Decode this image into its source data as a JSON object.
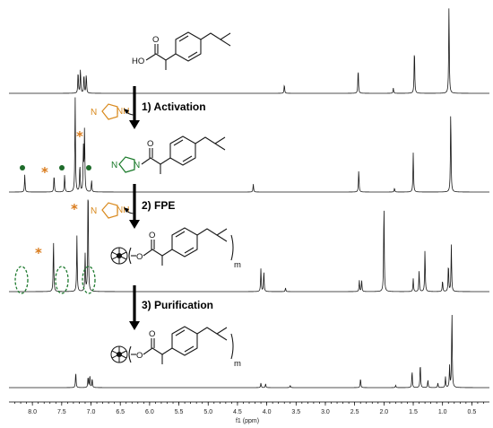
{
  "chart_data": {
    "type": "line",
    "title": "",
    "xlabel": "f1 (ppm)",
    "xlim": [
      8.4,
      0.2
    ],
    "x_ticks": [
      "8.0",
      "7.5",
      "7.0",
      "6.5",
      "6.0",
      "5.5",
      "5.0",
      "4.5",
      "4.0",
      "3.5",
      "3.0",
      "2.5",
      "2.0",
      "1.5",
      "1.0",
      "0.5"
    ],
    "grid": false,
    "legend": "none",
    "series": [
      {
        "peaks_ppm": [
          7.22,
          7.18,
          7.12,
          7.08,
          3.7,
          2.44,
          1.84,
          1.48,
          0.89
        ],
        "peaks_rel": [
          0.25,
          0.28,
          0.22,
          0.22,
          0.1,
          0.28,
          0.06,
          0.52,
          1.0
        ]
      },
      {
        "peaks_ppm": [
          8.13,
          7.63,
          7.45,
          7.27,
          7.19,
          7.13,
          7.11,
          6.99,
          4.23,
          2.43,
          1.82,
          1.5,
          0.86
        ],
        "peaks_rel": [
          0.22,
          0.22,
          0.22,
          1.2,
          0.35,
          0.55,
          0.8,
          0.15,
          0.1,
          0.28,
          0.05,
          0.5,
          1.05
        ]
      },
      {
        "peaks_ppm": [
          7.64,
          7.24,
          7.1,
          7.05,
          4.1,
          4.05,
          3.68,
          2.42,
          2.38,
          2.0,
          1.5,
          1.4,
          1.3,
          1.0,
          0.9,
          0.85
        ],
        "peaks_rel": [
          0.55,
          0.6,
          0.4,
          1.2,
          0.25,
          0.22,
          0.04,
          0.12,
          0.12,
          0.95,
          0.14,
          0.22,
          0.45,
          0.12,
          0.3,
          0.5
        ]
      },
      {
        "peaks_ppm": [
          7.26,
          7.05,
          7.02,
          6.98,
          4.1,
          4.02,
          3.6,
          2.4,
          1.8,
          1.52,
          1.38,
          1.25,
          1.08,
          0.95,
          0.88,
          0.84
        ],
        "peaks_rel": [
          0.2,
          0.14,
          0.16,
          0.12,
          0.06,
          0.05,
          0.03,
          0.12,
          0.03,
          0.22,
          0.32,
          0.1,
          0.06,
          0.14,
          0.28,
          1.0
        ]
      }
    ]
  },
  "steps": {
    "s1": "1) Activation",
    "s2": "2) FPE",
    "s3": "3) Purification"
  },
  "labels": {
    "ho": "HO",
    "o": "O",
    "n": "N",
    "nh": "NH",
    "m": "m",
    "star": "*"
  },
  "colors": {
    "spectrum": "#1a1a1a",
    "imidazole_free": "#d98a1e",
    "imidazole_bound": "#1a7a2a",
    "star": "#d97a1a",
    "dot": "#1e6b2a"
  }
}
